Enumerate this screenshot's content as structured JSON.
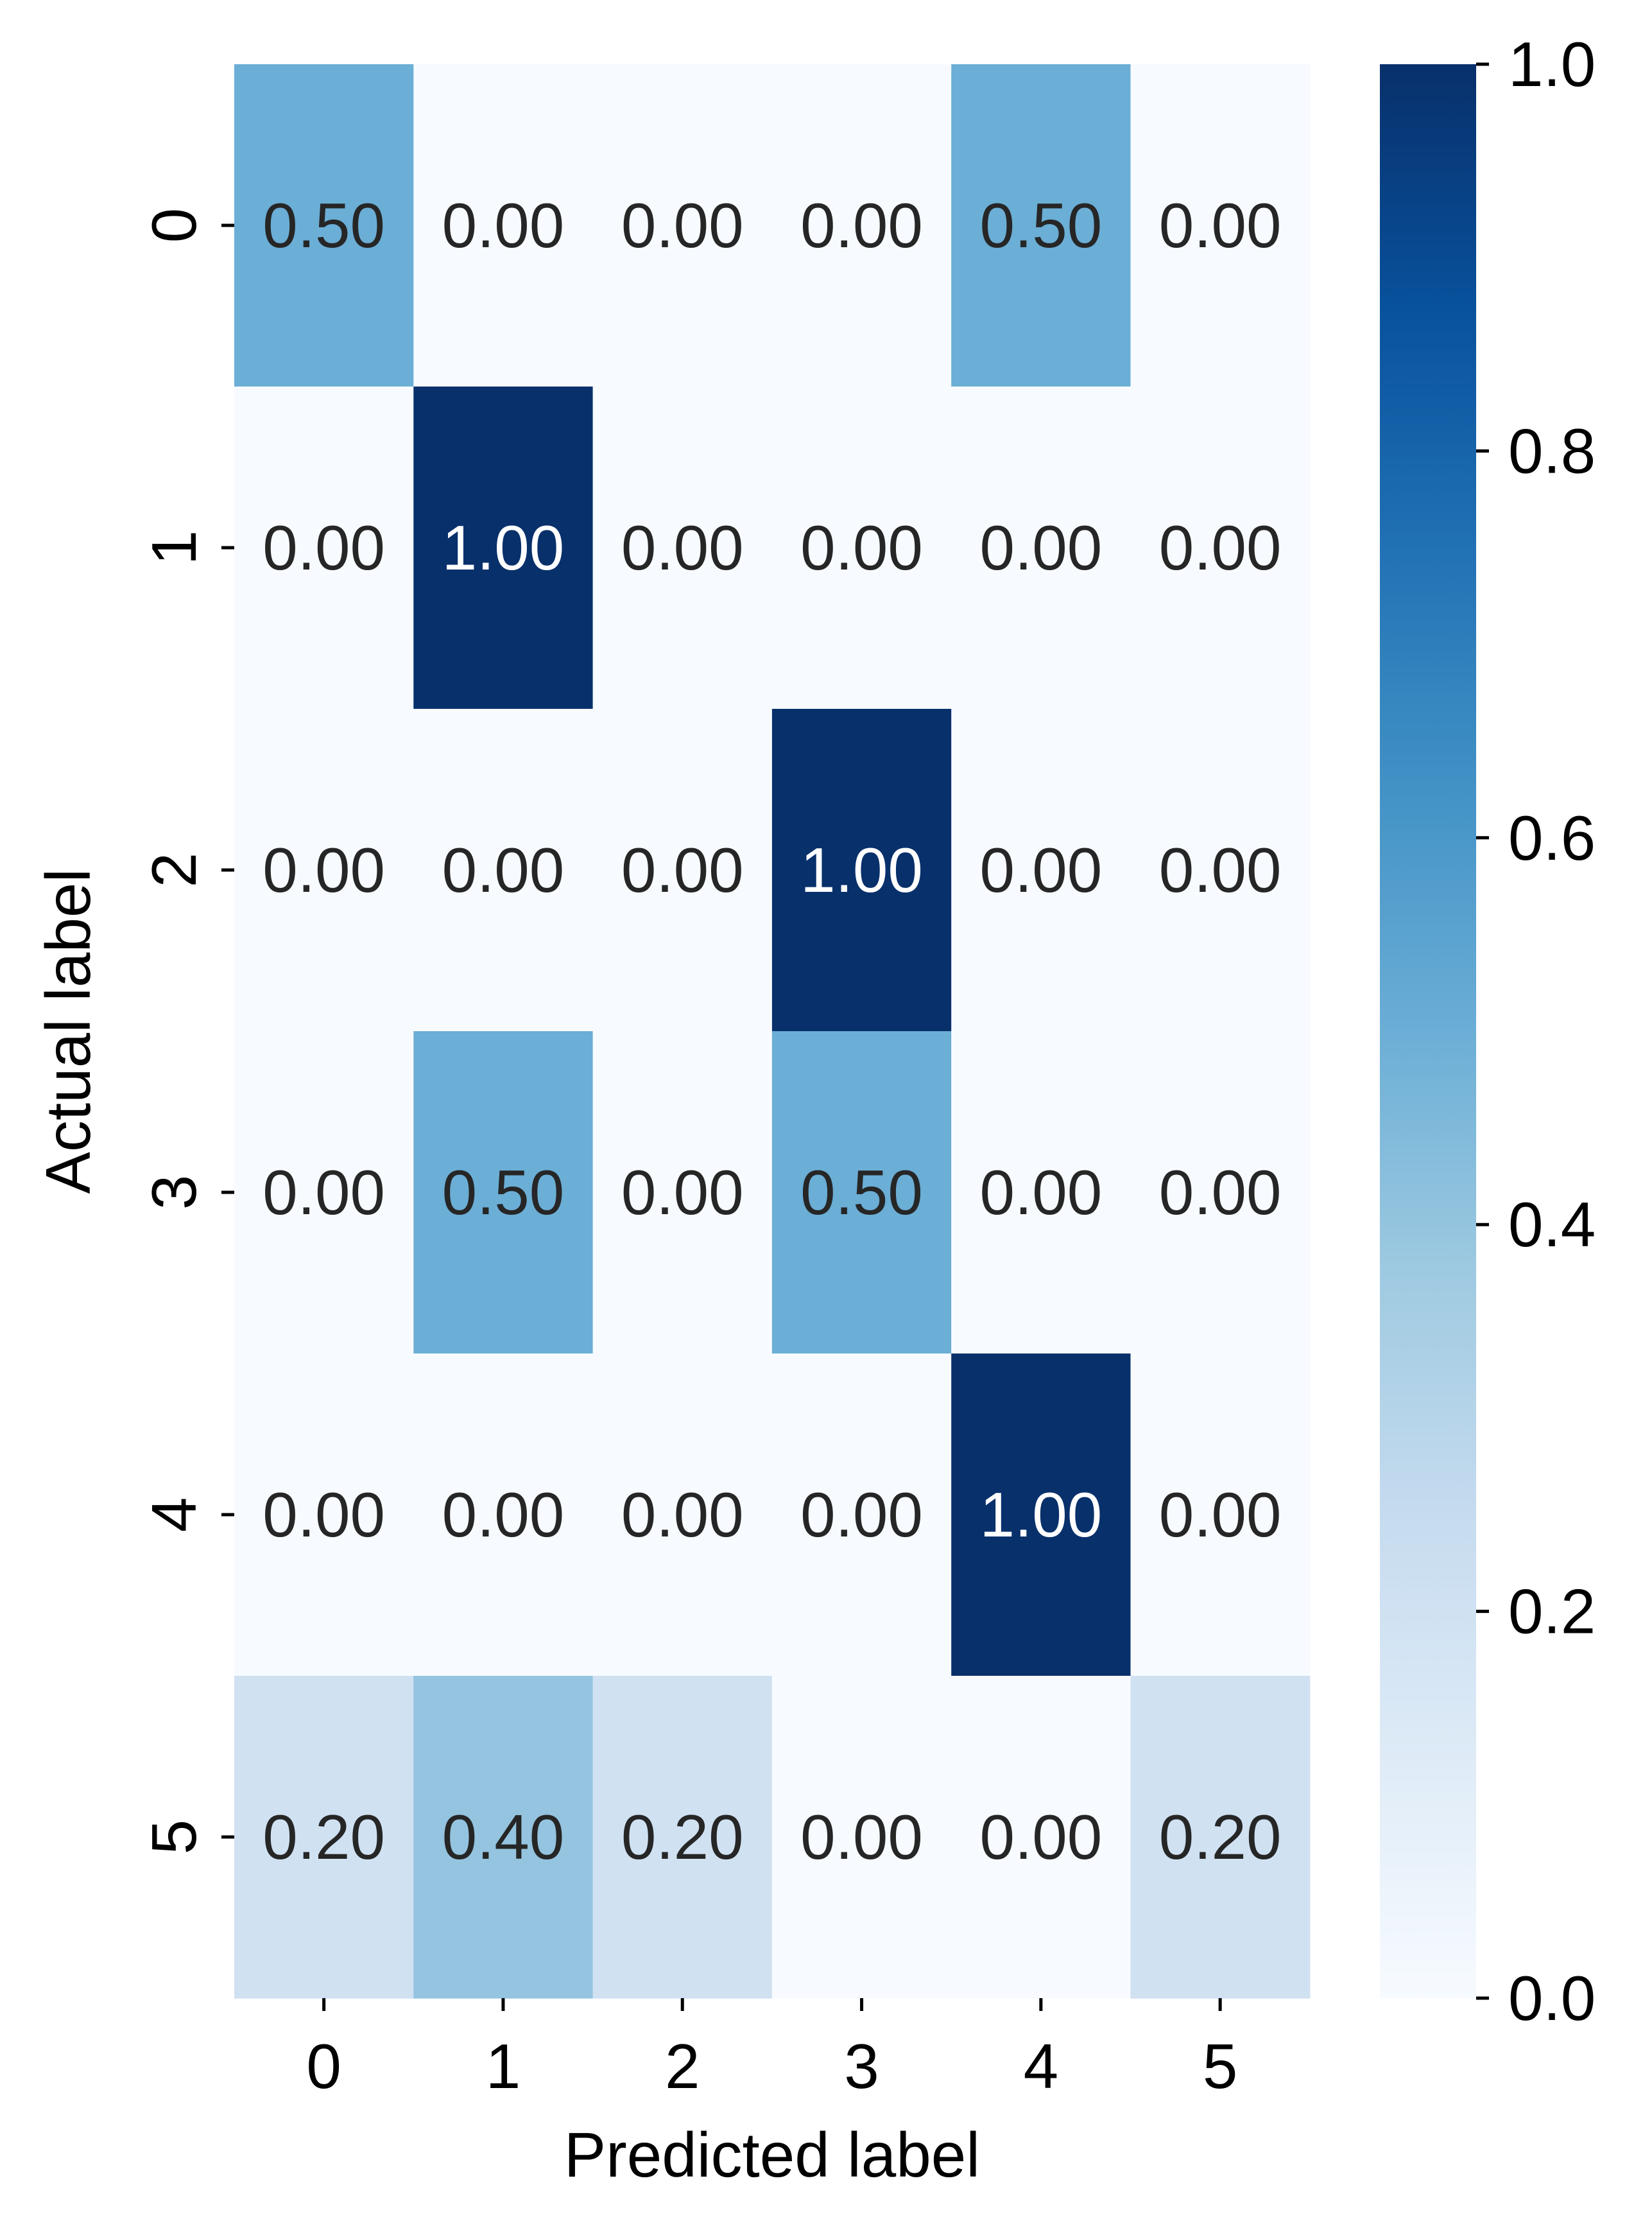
{
  "chart_data": {
    "type": "heatmap",
    "title": "",
    "xlabel": "Predicted label",
    "ylabel": "Actual label",
    "x_categories": [
      "0",
      "1",
      "2",
      "3",
      "4",
      "5"
    ],
    "y_categories": [
      "0",
      "1",
      "2",
      "3",
      "4",
      "5"
    ],
    "values": [
      [
        0.5,
        0.0,
        0.0,
        0.0,
        0.5,
        0.0
      ],
      [
        0.0,
        1.0,
        0.0,
        0.0,
        0.0,
        0.0
      ],
      [
        0.0,
        0.0,
        0.0,
        1.0,
        0.0,
        0.0
      ],
      [
        0.0,
        0.5,
        0.0,
        0.5,
        0.0,
        0.0
      ],
      [
        0.0,
        0.0,
        0.0,
        0.0,
        1.0,
        0.0
      ],
      [
        0.2,
        0.4,
        0.2,
        0.0,
        0.0,
        0.2
      ]
    ],
    "value_format": "0.00",
    "colormap": "Blues",
    "colorbar": {
      "range": [
        0.0,
        1.0
      ],
      "ticks": [
        "0.0",
        "0.2",
        "0.4",
        "0.6",
        "0.8",
        "1.0"
      ],
      "position": "right"
    },
    "grid": false
  }
}
